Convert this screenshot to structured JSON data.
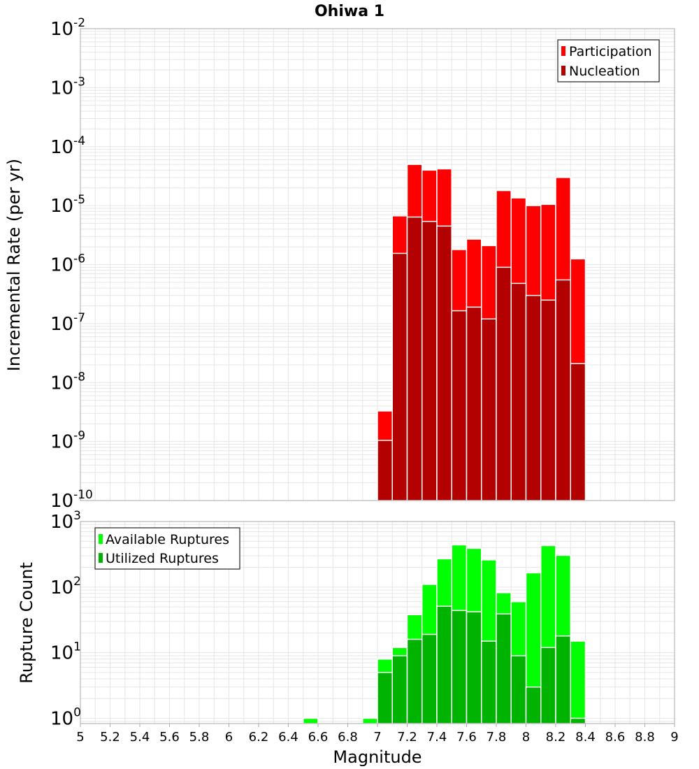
{
  "chart_data": [
    {
      "type": "bar",
      "title": "Ohiwa 1",
      "xlabel": "Magnitude",
      "ylabel": "Incremental Rate (per yr)",
      "yscale": "log",
      "ylim_exp": [
        -10,
        -2
      ],
      "xlim": [
        5,
        9
      ],
      "bin_width": 0.1,
      "x": [
        7.05,
        7.15,
        7.25,
        7.35,
        7.45,
        7.55,
        7.65,
        7.75,
        7.85,
        7.95,
        8.05,
        8.15,
        8.25,
        8.35
      ],
      "series": [
        {
          "name": "Participation",
          "color": "#ff0000",
          "values": [
            3.3e-09,
            6.7e-06,
            5e-05,
            4e-05,
            4.2e-05,
            1.8e-06,
            2.7e-06,
            2.1e-06,
            1.8e-05,
            1.35e-05,
            1e-05,
            1.05e-05,
            3e-05,
            1.25e-06
          ]
        },
        {
          "name": "Nucleation",
          "color": "#b30000",
          "values": [
            1.05e-09,
            1.55e-06,
            6.4e-06,
            5.4e-06,
            4.5e-06,
            1.65e-07,
            1.9e-07,
            1.2e-07,
            9e-07,
            4.8e-07,
            3e-07,
            2.5e-07,
            5.5e-07,
            2.1e-08
          ]
        }
      ],
      "legend": {
        "entries": [
          "Participation",
          "Nucleation"
        ],
        "position": "top-right"
      },
      "ytick_labels": [
        {
          "base": "10",
          "exp": "-10"
        },
        {
          "base": "10",
          "exp": "-9"
        },
        {
          "base": "10",
          "exp": "-8"
        },
        {
          "base": "10",
          "exp": "-7"
        },
        {
          "base": "10",
          "exp": "-6"
        },
        {
          "base": "10",
          "exp": "-5"
        },
        {
          "base": "10",
          "exp": "-4"
        },
        {
          "base": "10",
          "exp": "-3"
        },
        {
          "base": "10",
          "exp": "-2"
        }
      ]
    },
    {
      "type": "bar",
      "title": "",
      "xlabel": "Magnitude",
      "ylabel": "Rupture Count",
      "yscale": "log",
      "ylim_exp": [
        -0.08,
        3
      ],
      "xlim": [
        5,
        9
      ],
      "bin_width": 0.1,
      "x": [
        6.55,
        6.95,
        7.05,
        7.15,
        7.25,
        7.35,
        7.45,
        7.55,
        7.65,
        7.75,
        7.85,
        7.95,
        8.05,
        8.15,
        8.25,
        8.35
      ],
      "series": [
        {
          "name": "Available Ruptures",
          "color": "#00ff00",
          "values": [
            1,
            1,
            8,
            12,
            38,
            110,
            270,
            440,
            390,
            260,
            82,
            60,
            165,
            430,
            305,
            15
          ]
        },
        {
          "name": "Utilized Ruptures",
          "color": "#00b300",
          "values": [
            0,
            0,
            5,
            9,
            16,
            19,
            51,
            44,
            42,
            15,
            39,
            9,
            3,
            12,
            18,
            1
          ]
        }
      ],
      "legend": {
        "entries": [
          "Available Ruptures",
          "Utilized Ruptures"
        ],
        "position": "top-left"
      },
      "ytick_labels": [
        {
          "base": "10",
          "exp": "0"
        },
        {
          "base": "10",
          "exp": "1"
        },
        {
          "base": "10",
          "exp": "2"
        },
        {
          "base": "10",
          "exp": "3"
        }
      ]
    }
  ],
  "xtick_labels": [
    "5",
    "5.2",
    "5.4",
    "5.6",
    "5.8",
    "6",
    "6.2",
    "6.4",
    "6.6",
    "6.8",
    "7",
    "7.2",
    "7.4",
    "7.6",
    "7.8",
    "8",
    "8.2",
    "8.4",
    "8.6",
    "8.8",
    "9"
  ],
  "colors": {
    "grid": "#e6e6e6",
    "frame": "#aaaaaa",
    "bar_outline": "#ffffff"
  }
}
